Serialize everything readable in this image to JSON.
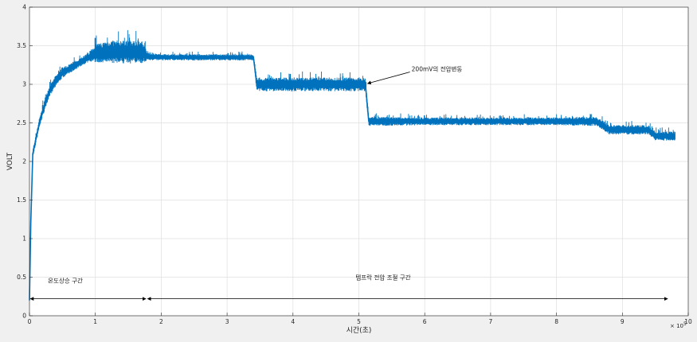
{
  "chart_data": {
    "type": "line",
    "title": "",
    "xlabel": "시간(초)",
    "ylabel": "VOLT",
    "x_exponent_label": "× 10",
    "x_exponent_power": "5",
    "xlim": [
      0,
      10
    ],
    "ylim": [
      0,
      4
    ],
    "x_ticks": [
      0,
      1,
      2,
      3,
      4,
      5,
      6,
      7,
      8,
      9,
      10
    ],
    "y_ticks": [
      0,
      0.5,
      1,
      1.5,
      2,
      2.5,
      3,
      3.5,
      4
    ],
    "x_tick_labels": [
      "0",
      "1",
      "2",
      "3",
      "4",
      "5",
      "6",
      "7",
      "8",
      "9",
      "10"
    ],
    "y_tick_labels": [
      "0",
      "0.5",
      "1",
      "1.5",
      "2",
      "2.5",
      "3",
      "3.5",
      "4"
    ],
    "grid": true,
    "series_color": "#0072bd",
    "series": [
      {
        "x": [
          0,
          0.02,
          0.05,
          0.1,
          0.15,
          0.2,
          0.3,
          0.4,
          0.5,
          0.6,
          0.7,
          0.8,
          0.9,
          1.0,
          1.2,
          1.4,
          1.6,
          1.7,
          1.8,
          2.0,
          2.5,
          3.0,
          3.4,
          3.45,
          4.0,
          4.5,
          5.1,
          5.15,
          6.0,
          7.0,
          8.0,
          8.6,
          8.7,
          8.8,
          9.2,
          9.4,
          9.5,
          9.8
        ],
        "y": [
          0.2,
          1.2,
          2.1,
          2.3,
          2.5,
          2.65,
          2.9,
          3.05,
          3.15,
          3.2,
          3.25,
          3.3,
          3.35,
          3.4,
          3.42,
          3.42,
          3.42,
          3.42,
          3.36,
          3.35,
          3.35,
          3.35,
          3.35,
          3.0,
          3.0,
          3.0,
          3.0,
          2.52,
          2.52,
          2.52,
          2.52,
          2.52,
          2.47,
          2.41,
          2.41,
          2.41,
          2.33,
          2.33
        ],
        "noise": [
          0,
          0.02,
          0.05,
          0.06,
          0.06,
          0.07,
          0.07,
          0.07,
          0.07,
          0.06,
          0.06,
          0.06,
          0.06,
          0.12,
          0.15,
          0.15,
          0.15,
          0.15,
          0.05,
          0.04,
          0.04,
          0.04,
          0.04,
          0.09,
          0.09,
          0.09,
          0.09,
          0.06,
          0.05,
          0.05,
          0.05,
          0.06,
          0.06,
          0.06,
          0.06,
          0.06,
          0.06,
          0.06
        ]
      }
    ],
    "annotations": [
      {
        "text": "200mV의 전압변동",
        "x": 5.8,
        "y": 3.17,
        "arrow_to": [
          5.12,
          3.0
        ]
      },
      {
        "text": "온도상승 구간",
        "x": 0.28,
        "y": 0.43,
        "span": [
          0,
          1.78
        ],
        "span_y": 0.22
      },
      {
        "text": "템프락 전압 조절 구간",
        "x": 4.95,
        "y": 0.47,
        "span": [
          1.78,
          9.7
        ],
        "span_y": 0.22
      }
    ]
  }
}
